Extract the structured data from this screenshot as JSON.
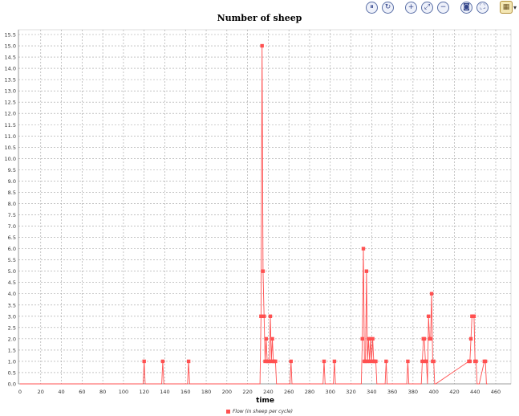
{
  "toolbar": {
    "buttons": [
      {
        "name": "pause",
        "icon": "pause-icon",
        "glyph": "⏸"
      },
      {
        "name": "refresh",
        "icon": "refresh-icon",
        "glyph": "↻"
      },
      {
        "name": "zoom-in",
        "icon": "zoom-in-icon",
        "glyph": "+"
      },
      {
        "name": "fit",
        "icon": "fit-to-window-icon",
        "glyph": "⤢"
      },
      {
        "name": "zoom-out",
        "icon": "zoom-out-icon",
        "glyph": "−"
      },
      {
        "name": "snapshot",
        "icon": "camera-icon",
        "glyph": "◙"
      },
      {
        "name": "fullscreen",
        "icon": "fullscreen-icon",
        "glyph": "⛶"
      },
      {
        "name": "layout",
        "icon": "layout-icon",
        "glyph": "▦"
      }
    ]
  },
  "colors": {
    "series": "#ff5050",
    "grid": "#a0a0a0",
    "axis": "#000000"
  },
  "chart_data": {
    "type": "line",
    "title": "Number of sheep",
    "xlabel": "time",
    "ylabel": "",
    "xlim": [
      0,
      460
    ],
    "ylim": [
      0,
      15.5
    ],
    "xticks": [
      0,
      20,
      40,
      60,
      80,
      100,
      120,
      140,
      160,
      180,
      200,
      220,
      240,
      260,
      280,
      300,
      320,
      340,
      360,
      380,
      400,
      420,
      440,
      460
    ],
    "yticks": [
      "0.0",
      "0.5",
      "1.0",
      "1.5",
      "2.0",
      "2.5",
      "3.0",
      "3.5",
      "4.0",
      "4.5",
      "5.0",
      "5.5",
      "6.0",
      "6.5",
      "7.0",
      "7.5",
      "8.0",
      "8.5",
      "9.0",
      "9.5",
      "10.0",
      "10.5",
      "11.0",
      "11.5",
      "12.0",
      "12.5",
      "13.0",
      "13.5",
      "14.0",
      "14.5",
      "15.0",
      "15.5"
    ],
    "grid": true,
    "legend_position": "bottom",
    "series": [
      {
        "name": "Flow (in sheep per cycle)",
        "x": [
          0,
          119,
          120,
          121,
          137,
          138,
          139,
          162,
          163,
          164,
          232,
          233,
          234,
          235,
          236,
          237,
          238,
          239,
          240,
          241,
          242,
          243,
          244,
          245,
          246,
          247,
          248,
          261,
          262,
          263,
          293,
          294,
          295,
          303,
          304,
          305,
          330,
          331,
          332,
          333,
          334,
          335,
          336,
          337,
          338,
          339,
          340,
          341,
          342,
          343,
          344,
          345,
          346,
          347,
          353,
          354,
          355,
          374,
          375,
          376,
          388,
          389,
          390,
          391,
          392,
          393,
          394,
          395,
          396,
          397,
          398,
          399,
          400,
          401,
          402,
          434,
          435,
          436,
          437,
          438,
          439,
          440,
          441,
          442,
          443,
          444,
          449,
          450,
          451,
          452
        ],
        "values": [
          0,
          0,
          1,
          0,
          0,
          1,
          0,
          0,
          1,
          0,
          0,
          3,
          15,
          5,
          3,
          1,
          2,
          1,
          1,
          1,
          3,
          1,
          2,
          1,
          1,
          1,
          0,
          0,
          1,
          0,
          0,
          1,
          0,
          0,
          1,
          0,
          0,
          2,
          6,
          1,
          1,
          5,
          1,
          2,
          1,
          2,
          1,
          2,
          1,
          1,
          1,
          0,
          0,
          0,
          0,
          1,
          0,
          0,
          1,
          0,
          0,
          1,
          2,
          2,
          1,
          1,
          0,
          3,
          2,
          2,
          4,
          1,
          1,
          0,
          0,
          1,
          1,
          2,
          3,
          3,
          3,
          1,
          1,
          0,
          0,
          0,
          1,
          1,
          0,
          0
        ]
      }
    ]
  }
}
